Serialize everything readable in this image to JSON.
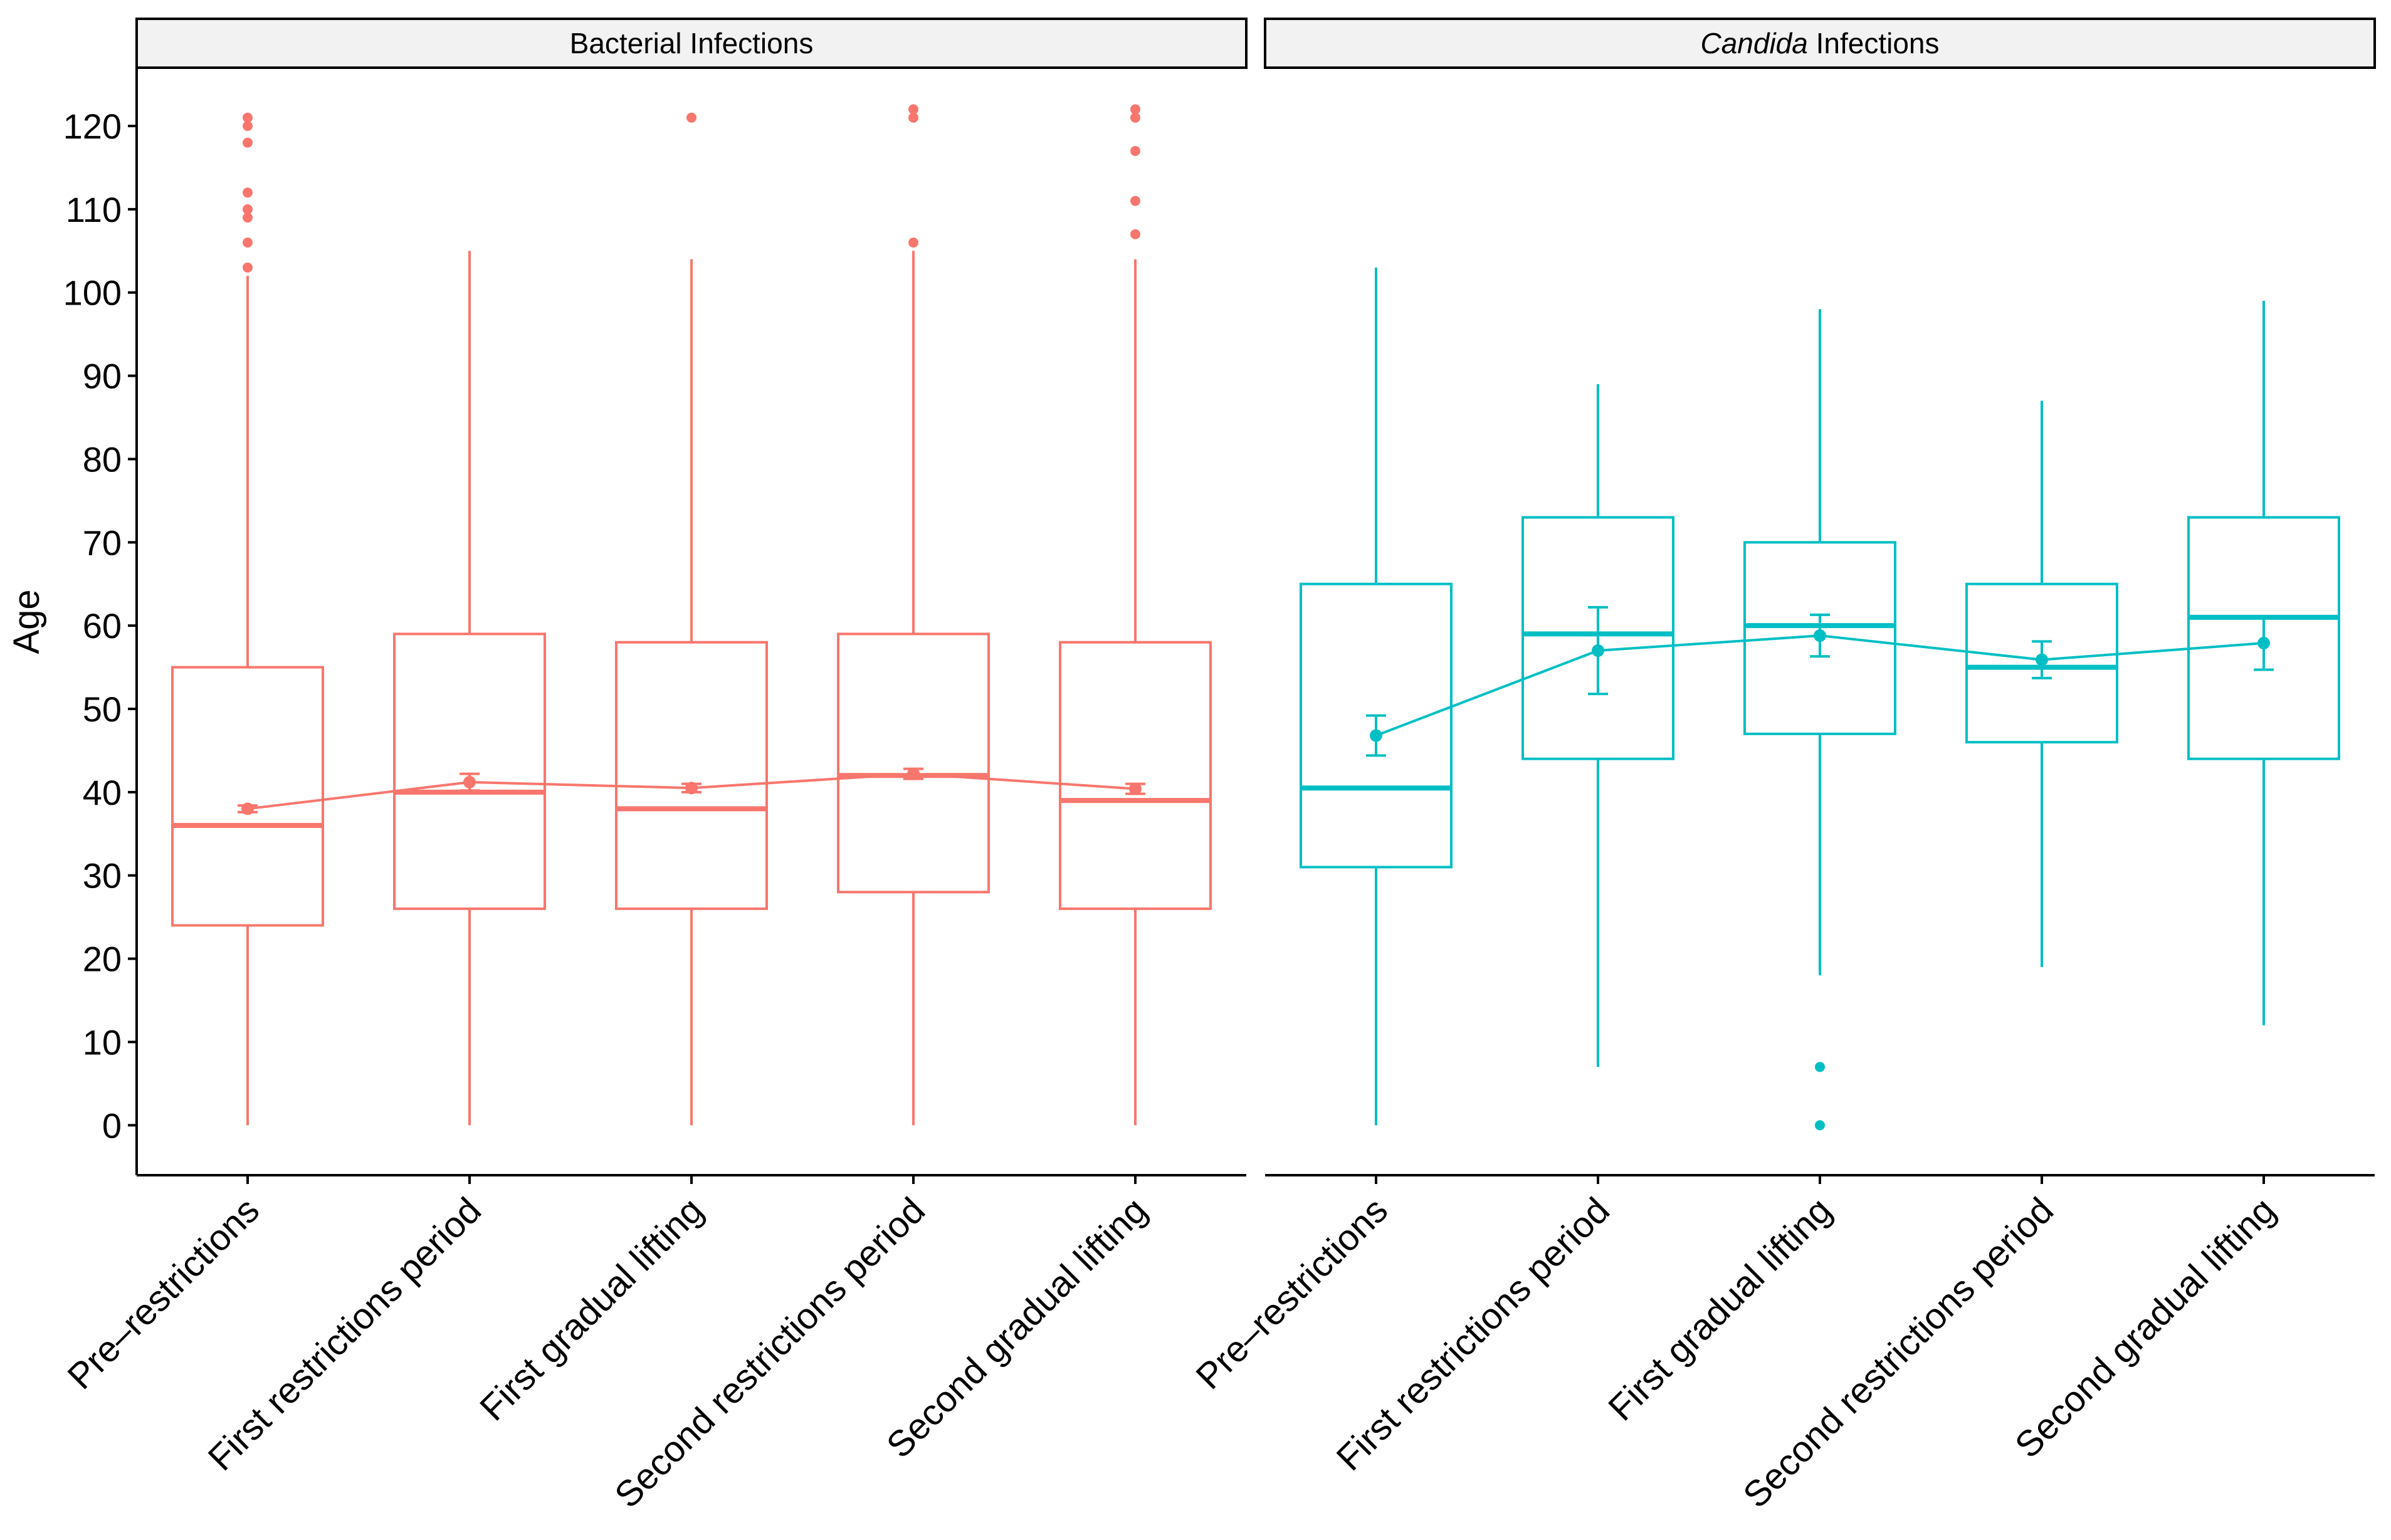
{
  "chart_data": {
    "type": "boxplot",
    "ylabel": "Age",
    "ylim": [
      -6,
      127
    ],
    "yticks": [
      0,
      10,
      20,
      30,
      40,
      50,
      60,
      70,
      80,
      90,
      100,
      110,
      120
    ],
    "categories": [
      "Pre–restrictions",
      "First restrictions period",
      "First gradual lifting",
      "Second restrictions period",
      "Second gradual lifting"
    ],
    "panels": [
      {
        "title_parts": [
          {
            "text": "Bacterial Infections",
            "italic": false
          }
        ],
        "color": "#F8766D",
        "boxes": [
          {
            "category": "Pre–restrictions",
            "min": 0,
            "q1": 24,
            "median": 36,
            "q3": 55,
            "max": 102,
            "mean": 38,
            "ci_low": 37.6,
            "ci_high": 38.4,
            "outliers": [
              103,
              106,
              109,
              110,
              112,
              118,
              120,
              121
            ]
          },
          {
            "category": "First restrictions period",
            "min": 0,
            "q1": 26,
            "median": 40,
            "q3": 59,
            "max": 105,
            "mean": 41.2,
            "ci_low": 40.2,
            "ci_high": 42.2,
            "outliers": []
          },
          {
            "category": "First gradual lifting",
            "min": 0,
            "q1": 26,
            "median": 38,
            "q3": 58,
            "max": 104,
            "mean": 40.5,
            "ci_low": 40.0,
            "ci_high": 41.0,
            "outliers": [
              121
            ]
          },
          {
            "category": "Second restrictions period",
            "min": 0,
            "q1": 28,
            "median": 42,
            "q3": 59,
            "max": 105,
            "mean": 42.2,
            "ci_low": 41.6,
            "ci_high": 42.8,
            "outliers": [
              106,
              121,
              122
            ]
          },
          {
            "category": "Second gradual lifting",
            "min": 0,
            "q1": 26,
            "median": 39,
            "q3": 58,
            "max": 104,
            "mean": 40.4,
            "ci_low": 39.8,
            "ci_high": 41.0,
            "outliers": [
              107,
              111,
              117,
              121,
              122
            ]
          }
        ]
      },
      {
        "title_parts": [
          {
            "text": "Candida",
            "italic": true
          },
          {
            "text": " Infections",
            "italic": false
          }
        ],
        "color": "#00BFC4",
        "boxes": [
          {
            "category": "Pre–restrictions",
            "min": 0,
            "q1": 31,
            "median": 40.5,
            "q3": 65,
            "max": 103,
            "mean": 46.8,
            "ci_low": 44.4,
            "ci_high": 49.2,
            "outliers": []
          },
          {
            "category": "First restrictions period",
            "min": 7,
            "q1": 44,
            "median": 59,
            "q3": 73,
            "max": 89,
            "mean": 57,
            "ci_low": 51.8,
            "ci_high": 62.2,
            "outliers": []
          },
          {
            "category": "First gradual lifting",
            "min": 18,
            "q1": 47,
            "median": 60,
            "q3": 70,
            "max": 98,
            "mean": 58.8,
            "ci_low": 56.3,
            "ci_high": 61.3,
            "outliers": [
              0,
              7
            ]
          },
          {
            "category": "Second restrictions period",
            "min": 19,
            "q1": 46,
            "median": 55,
            "q3": 65,
            "max": 87,
            "mean": 55.9,
            "ci_low": 53.7,
            "ci_high": 58.1,
            "outliers": []
          },
          {
            "category": "Second gradual lifting",
            "min": 12,
            "q1": 44,
            "median": 61,
            "q3": 73,
            "max": 99,
            "mean": 57.9,
            "ci_low": 54.7,
            "ci_high": 61.1,
            "outliers": []
          }
        ]
      }
    ]
  }
}
